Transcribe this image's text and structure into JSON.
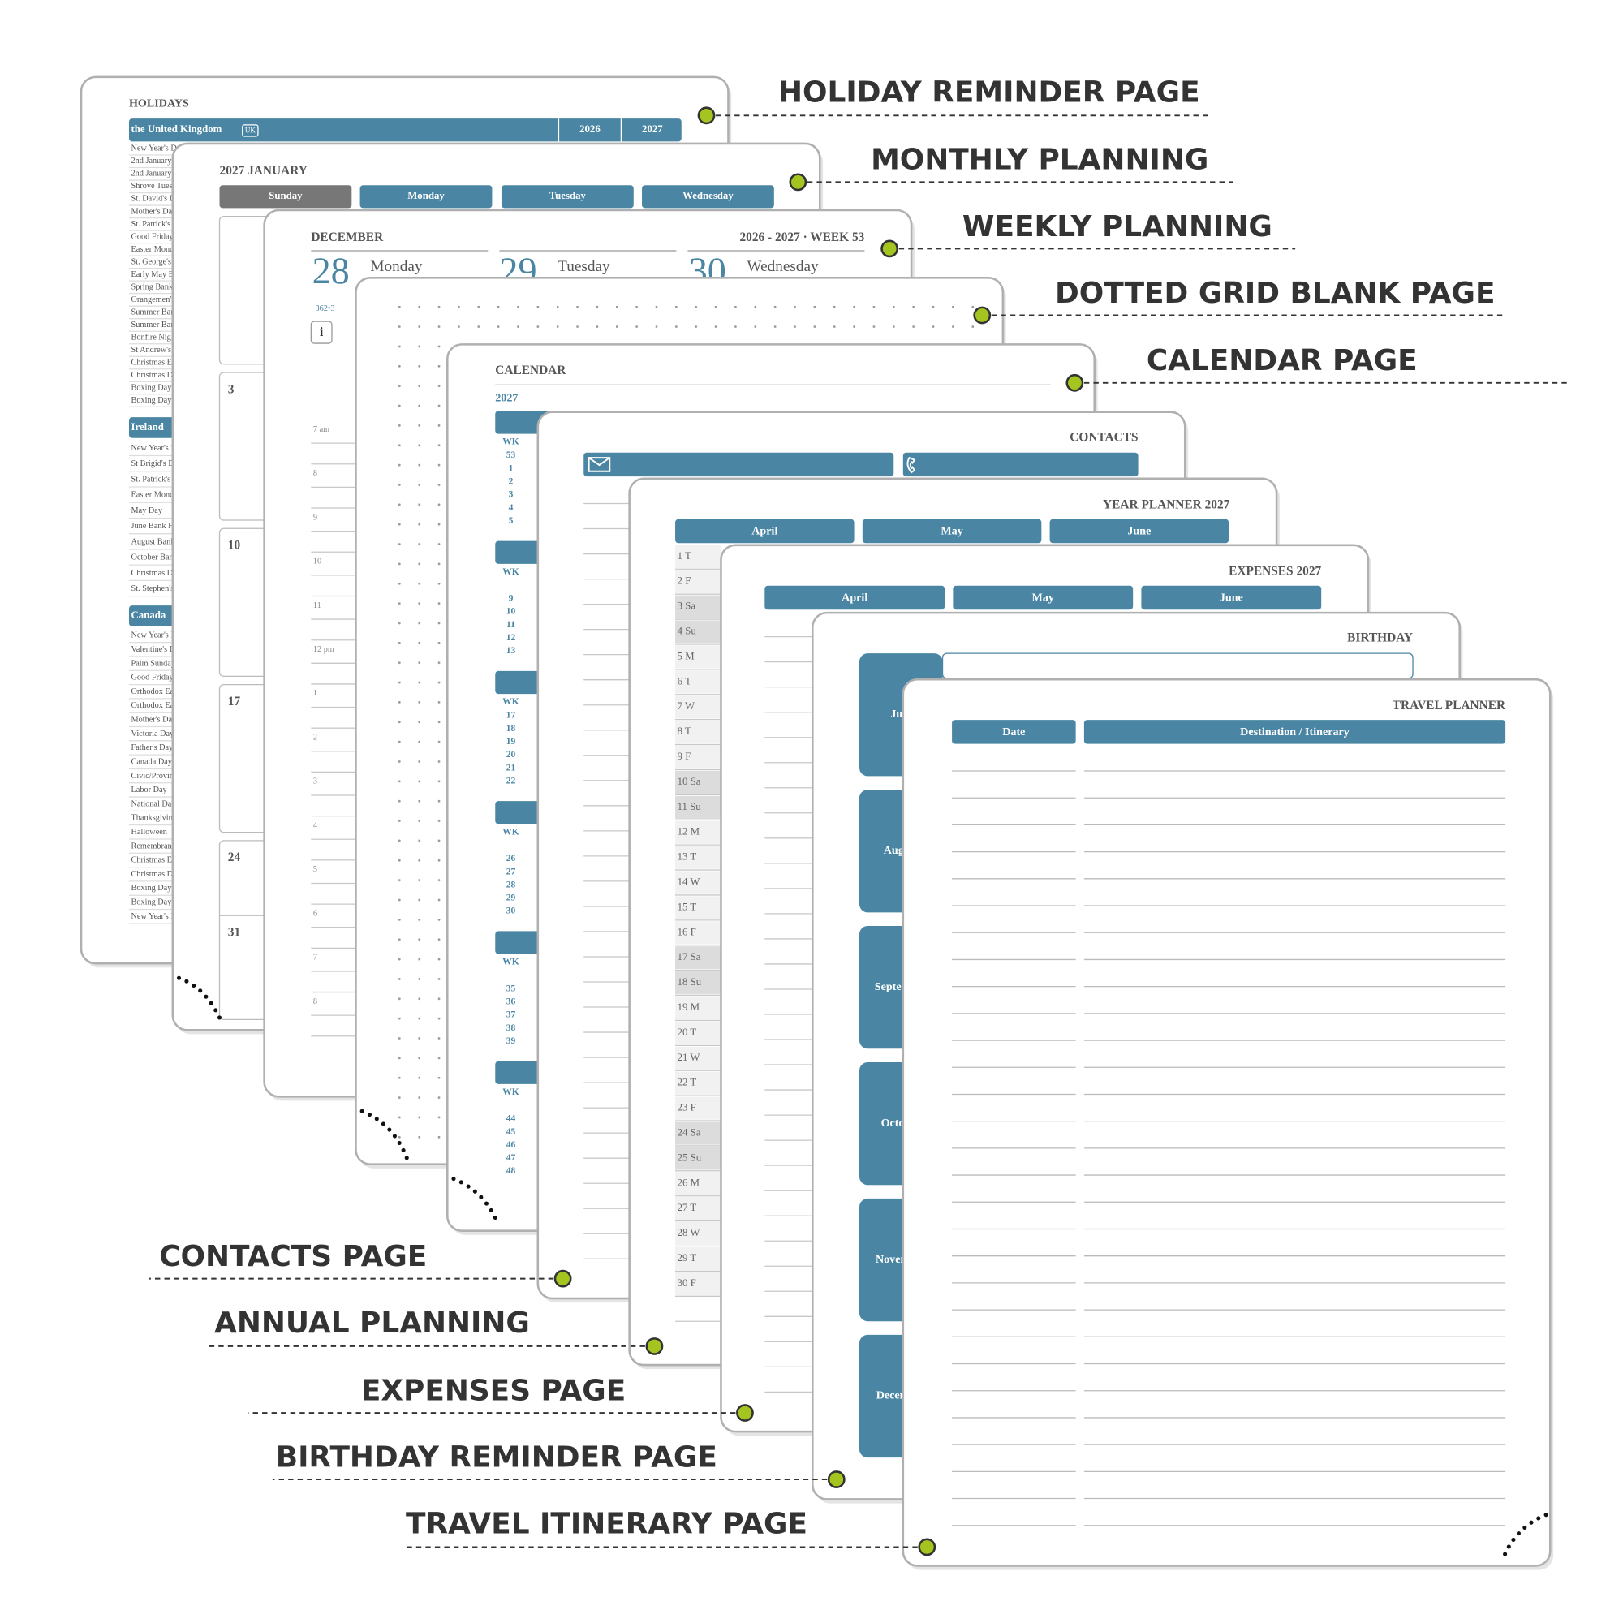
{
  "callouts": [
    "HOLIDAY REMINDER PAGE",
    "MONTHLY PLANNING",
    "WEEKLY PLANNING",
    "DOTTED GRID BLANK PAGE",
    "CALENDAR PAGE",
    "CONTACTS PAGE",
    "ANNUAL PLANNING",
    "EXPENSES PAGE",
    "BIRTHDAY REMINDER PAGE",
    "TRAVEL ITINERARY PAGE"
  ],
  "holidays": {
    "title": "HOLIDAYS",
    "country": "the United Kingdom",
    "country_code": "UK",
    "years": [
      "2026",
      "2027"
    ],
    "uk": [
      "New Year's Day",
      "2nd January",
      "2nd January",
      "Shrove Tuesday",
      "St. David's Day",
      "Mother's Day",
      "St. Patrick's Day",
      "Good Friday",
      "Easter Monday",
      "St. George's Day",
      "Early May Bank Holiday",
      "Spring Bank Holiday",
      "Orangemen's Day",
      "Summer Bank Holiday",
      "Summer Bank Holiday",
      "Bonfire Night",
      "St Andrew's Day",
      "Christmas Eve",
      "Christmas Day",
      "Boxing Day",
      "Boxing Day"
    ],
    "ireland": {
      "name": "Ireland",
      "days": [
        "New Year's Day",
        "St Brigid's Day",
        "St. Patrick's Day",
        "Easter Monday",
        "May Day",
        "June Bank Holiday",
        "August Bank Holiday",
        "October Bank Holiday",
        "Christmas Day",
        "St. Stephen's Day"
      ]
    },
    "canada": {
      "name": "Canada",
      "days": [
        "New Year's Day",
        "Valentine's Day",
        "Palm Sunday",
        "Good Friday",
        "Orthodox Easter",
        "Orthodox Easter Monday",
        "Mother's Day",
        "Victoria Day",
        "Father's Day",
        "Canada Day",
        "Civic/Provincial Day",
        "Labor Day",
        "National Day for Truth",
        "Thanksgiving",
        "Halloween",
        "Remembrance Day",
        "Christmas Eve",
        "Christmas Day",
        "Boxing Day",
        "Boxing Day",
        "New Year's Eve"
      ]
    }
  },
  "monthly": {
    "title": "2027 JANUARY",
    "weekdays": [
      "Sunday",
      "Monday",
      "Tuesday",
      "Wednesday"
    ],
    "dates": [
      "3",
      "10",
      "17",
      "24",
      "31"
    ]
  },
  "weekly": {
    "month": "DECEMBER",
    "week": "2026 - 2027 · WEEK 53",
    "days": [
      {
        "date": "28",
        "name": "Monday"
      },
      {
        "date": "29",
        "name": "Tuesday"
      },
      {
        "date": "30",
        "name": "Wednesday"
      }
    ],
    "day_of_year": "362•3",
    "info": "i",
    "hours": [
      "7 am",
      "8",
      "9",
      "10",
      "11",
      "12 pm",
      "1",
      "2",
      "3",
      "4",
      "5",
      "6",
      "7",
      "8"
    ]
  },
  "calendar": {
    "title": "CALENDAR",
    "year": "2027",
    "week_label": "WK",
    "blocks": [
      [
        53,
        1,
        2,
        3,
        4,
        5
      ],
      [
        9,
        10,
        11,
        12,
        13
      ],
      [
        17,
        18,
        19,
        20,
        21,
        22
      ],
      [
        26,
        27,
        28,
        29,
        30
      ],
      [
        35,
        36,
        37,
        38,
        39
      ],
      [
        44,
        45,
        46,
        47,
        48
      ]
    ]
  },
  "contacts": {
    "title": "CONTACTS"
  },
  "year_planner": {
    "title": "YEAR PLANNER 2027",
    "months": [
      "April",
      "May",
      "June"
    ],
    "days": [
      "1 T",
      "2 F",
      "3 Sa",
      "4 Su",
      "5 M",
      "6 T",
      "7 W",
      "8 T",
      "9 F",
      "10 Sa",
      "11 Su",
      "12 M",
      "13 T",
      "14 W",
      "15 T",
      "16 F",
      "17 Sa",
      "18 Su",
      "19 M",
      "20 T",
      "21 W",
      "22 T",
      "23 F",
      "24 Sa",
      "25 Su",
      "26 M",
      "27 T",
      "28 W",
      "29 T",
      "30 F"
    ]
  },
  "expenses": {
    "title": "EXPENSES 2027",
    "months": [
      "April",
      "May",
      "June"
    ]
  },
  "birthday": {
    "title": "BIRTHDAY",
    "months": [
      "July",
      "August",
      "September",
      "October",
      "November",
      "December"
    ]
  },
  "travel": {
    "title": "TRAVEL PLANNER",
    "columns": [
      "Date",
      "Destination / Itinerary"
    ]
  }
}
